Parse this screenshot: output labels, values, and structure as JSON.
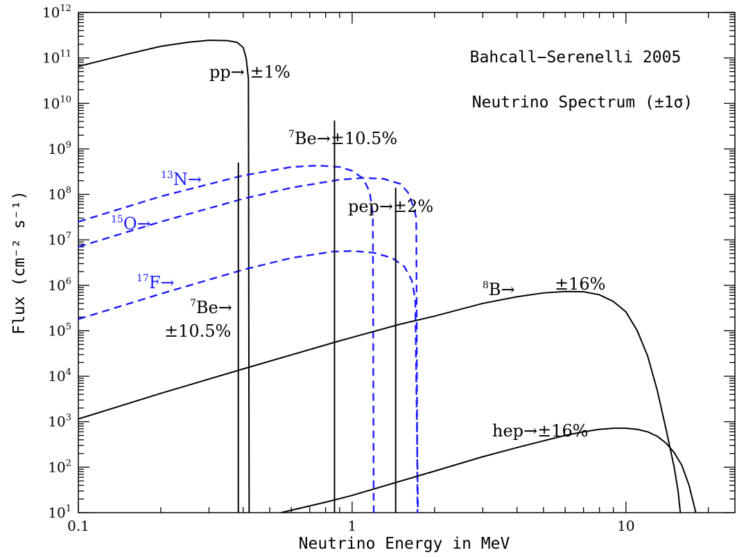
{
  "chart_data": {
    "type": "line",
    "title": "Bahcall−Serenelli 2005",
    "subtitle": "Neutrino Spectrum (±1σ)",
    "xlabel": "Neutrino Energy in MeV",
    "ylabel": "Flux (cm⁻² s⁻¹)",
    "x_scale": "log",
    "y_scale": "log",
    "xlim": [
      0.1,
      25
    ],
    "ylim": [
      10,
      1000000000000
    ],
    "x_ticks": [
      {
        "value": 0.1,
        "label": "0.1"
      },
      {
        "value": 1,
        "label": "1"
      },
      {
        "value": 10,
        "label": "10"
      }
    ],
    "y_ticks": [
      {
        "value": 10,
        "base": "10",
        "exp": "1"
      },
      {
        "value": 100,
        "base": "10",
        "exp": "2"
      },
      {
        "value": 1000,
        "base": "10",
        "exp": "3"
      },
      {
        "value": 10000,
        "base": "10",
        "exp": "4"
      },
      {
        "value": 100000,
        "base": "10",
        "exp": "5"
      },
      {
        "value": 1000000,
        "base": "10",
        "exp": "6"
      },
      {
        "value": 10000000,
        "base": "10",
        "exp": "7"
      },
      {
        "value": 100000000,
        "base": "10",
        "exp": "8"
      },
      {
        "value": 1000000000,
        "base": "10",
        "exp": "9"
      },
      {
        "value": 10000000000,
        "base": "10",
        "exp": "10"
      },
      {
        "value": 100000000000,
        "base": "10",
        "exp": "11"
      },
      {
        "value": 1000000000000,
        "base": "10",
        "exp": "12"
      }
    ],
    "series": [
      {
        "name": "pp",
        "style": "solid",
        "color": "#000000",
        "points": [
          [
            0.1,
            65000000000.0
          ],
          [
            0.15,
            120000000000.0
          ],
          [
            0.2,
            180000000000.0
          ],
          [
            0.25,
            220000000000.0
          ],
          [
            0.3,
            245000000000.0
          ],
          [
            0.35,
            240000000000.0
          ],
          [
            0.38,
            220000000000.0
          ],
          [
            0.4,
            170000000000.0
          ],
          [
            0.41,
            100000000000.0
          ],
          [
            0.418,
            35000000000.0
          ],
          [
            0.4205,
            10
          ]
        ]
      },
      {
        "name": "13N",
        "style": "dashed",
        "color": "#1a1aff",
        "points": [
          [
            0.1,
            25000000.0
          ],
          [
            0.2,
            90000000.0
          ],
          [
            0.4,
            260000000.0
          ],
          [
            0.6,
            400000000.0
          ],
          [
            0.75,
            430000000.0
          ],
          [
            0.9,
            400000000.0
          ],
          [
            1.0,
            330000000.0
          ],
          [
            1.1,
            220000000.0
          ],
          [
            1.16,
            110000000.0
          ],
          [
            1.19,
            35000000.0
          ],
          [
            1.199,
            10
          ]
        ]
      },
      {
        "name": "15O",
        "style": "dashed",
        "color": "#1a1aff",
        "points": [
          [
            0.1,
            7000000.0
          ],
          [
            0.2,
            25000000.0
          ],
          [
            0.4,
            80000000.0
          ],
          [
            0.6,
            140000000.0
          ],
          [
            0.9,
            210000000.0
          ],
          [
            1.1,
            230000000.0
          ],
          [
            1.3,
            220000000.0
          ],
          [
            1.5,
            170000000.0
          ],
          [
            1.6,
            110000000.0
          ],
          [
            1.68,
            50000000.0
          ],
          [
            1.715,
            30000000.0
          ],
          [
            1.732,
            10
          ]
        ]
      },
      {
        "name": "17F",
        "style": "dashed",
        "color": "#1a1aff",
        "points": [
          [
            0.1,
            180000.0
          ],
          [
            0.2,
            650000.0
          ],
          [
            0.4,
            2200000.0
          ],
          [
            0.6,
            4000000.0
          ],
          [
            0.85,
            5500000.0
          ],
          [
            1.0,
            5700000.0
          ],
          [
            1.2,
            5200000.0
          ],
          [
            1.4,
            4000000.0
          ],
          [
            1.55,
            2600000.0
          ],
          [
            1.65,
            1300000.0
          ],
          [
            1.7,
            500000.0
          ],
          [
            1.74,
            10
          ]
        ]
      },
      {
        "name": "8B",
        "style": "solid",
        "color": "#000000",
        "points": [
          [
            0.1,
            1150.0
          ],
          [
            0.2,
            4200.0
          ],
          [
            0.4,
            14500.0
          ],
          [
            0.9,
            60000.0
          ],
          [
            1.5,
            140000.0
          ],
          [
            2,
            210000.0
          ],
          [
            3,
            400000.0
          ],
          [
            4,
            560000.0
          ],
          [
            5,
            680000.0
          ],
          [
            6,
            730000.0
          ],
          [
            7,
            720000.0
          ],
          [
            8,
            620000.0
          ],
          [
            9,
            440000.0
          ],
          [
            10,
            260000.0
          ],
          [
            11,
            100000.0
          ],
          [
            12,
            28000.0
          ],
          [
            13,
            5000.0
          ],
          [
            14,
            700.0
          ],
          [
            15,
            100.0
          ],
          [
            15.5,
            30
          ],
          [
            15.8,
            10
          ]
        ]
      },
      {
        "name": "hep",
        "style": "solid",
        "color": "#000000",
        "points": [
          [
            0.55,
            10
          ],
          [
            0.8,
            17
          ],
          [
            1,
            24
          ],
          [
            2,
            82
          ],
          [
            3,
            170
          ],
          [
            4,
            270
          ],
          [
            5,
            380
          ],
          [
            6,
            500
          ],
          [
            7,
            600
          ],
          [
            8,
            680
          ],
          [
            9,
            720
          ],
          [
            10,
            720
          ],
          [
            11,
            680
          ],
          [
            12,
            600
          ],
          [
            13,
            480
          ],
          [
            14,
            340
          ],
          [
            15,
            210
          ],
          [
            16,
            110
          ],
          [
            17,
            40
          ],
          [
            18,
            10
          ]
        ]
      }
    ],
    "lines": [
      {
        "name": "7Be 0.384",
        "x": 0.384,
        "y_top": 500000000.0
      },
      {
        "name": "7Be 0.862",
        "x": 0.862,
        "y_top": 4200000000.0
      },
      {
        "name": "pep",
        "x": 1.442,
        "y_top": 140000000.0
      }
    ],
    "annotations": [
      {
        "id": "pp",
        "text": "pp→ ±1%",
        "color": "#000000"
      },
      {
        "id": "be7-high",
        "sup": "7",
        "text": "Be→±10.5%",
        "color": "#000000"
      },
      {
        "id": "pep",
        "text": "pep→±2%",
        "color": "#000000"
      },
      {
        "id": "n13",
        "sup": "13",
        "text": "N→",
        "color": "#1a1aff"
      },
      {
        "id": "o15",
        "sup": "15",
        "text": "O→",
        "color": "#1a1aff"
      },
      {
        "id": "f17",
        "sup": "17",
        "text": "F→",
        "color": "#1a1aff"
      },
      {
        "id": "be7-low-line1",
        "sup": "7",
        "text": "Be→",
        "color": "#000000"
      },
      {
        "id": "be7-low-line2",
        "text": "±10.5%",
        "color": "#000000"
      },
      {
        "id": "b8",
        "sup": "8",
        "text": "B→",
        "color": "#000000"
      },
      {
        "id": "b8-err",
        "text": "±16%",
        "color": "#000000"
      },
      {
        "id": "hep",
        "text": "hep→±16%",
        "color": "#000000"
      }
    ]
  }
}
